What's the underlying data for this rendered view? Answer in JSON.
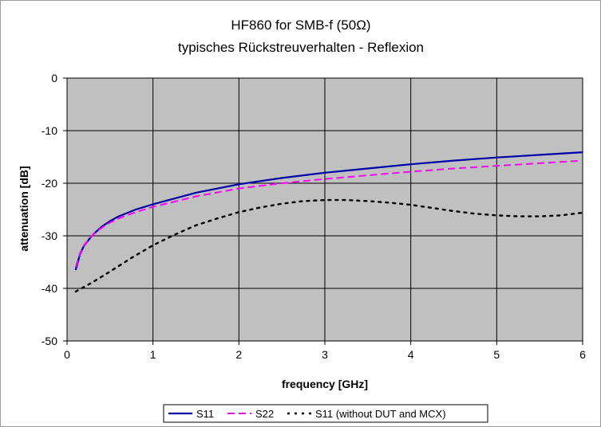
{
  "chart_data": {
    "type": "line",
    "title": "HF860 for SMB-f (50Ω)",
    "subtitle": "typisches Rückstreuverhalten - Reflexion",
    "xlabel": "frequency [GHz]",
    "ylabel": "attenuation [dB]",
    "xlim": [
      0,
      6
    ],
    "ylim": [
      -50,
      0
    ],
    "x_ticks": [
      0,
      1,
      2,
      3,
      4,
      5,
      6
    ],
    "y_ticks": [
      0,
      -10,
      -20,
      -30,
      -40,
      -50
    ],
    "grid": true,
    "legend_position": "bottom",
    "plot_background": "#c0c0c0",
    "series": [
      {
        "name": "S11",
        "color": "#0000a8",
        "style": "solid",
        "x": [
          0.1,
          0.15,
          0.2,
          0.3,
          0.4,
          0.5,
          0.6,
          0.8,
          1.0,
          1.5,
          2.0,
          2.5,
          3.0,
          3.5,
          4.0,
          4.5,
          5.0,
          5.5,
          6.0
        ],
        "y": [
          -36.5,
          -33.5,
          -31.8,
          -29.8,
          -28.3,
          -27.2,
          -26.3,
          -25.0,
          -24.0,
          -21.8,
          -20.2,
          -19.0,
          -18.0,
          -17.2,
          -16.4,
          -15.7,
          -15.1,
          -14.6,
          -14.1
        ]
      },
      {
        "name": "S22",
        "color": "#ff00ff",
        "style": "dashed",
        "x": [
          0.1,
          0.15,
          0.2,
          0.3,
          0.4,
          0.5,
          0.6,
          0.8,
          1.0,
          1.5,
          2.0,
          2.5,
          3.0,
          3.5,
          4.0,
          4.5,
          5.0,
          5.5,
          6.0
        ],
        "y": [
          -36.0,
          -33.3,
          -31.7,
          -29.8,
          -28.5,
          -27.5,
          -26.7,
          -25.5,
          -24.5,
          -22.5,
          -21.0,
          -20.0,
          -19.2,
          -18.5,
          -17.8,
          -17.2,
          -16.7,
          -16.2,
          -15.7
        ]
      },
      {
        "name": "S11 (without DUT and  MCX)",
        "color": "#000000",
        "style": "dotted",
        "x": [
          0.1,
          0.3,
          0.5,
          0.75,
          1.0,
          1.25,
          1.5,
          1.75,
          2.0,
          2.25,
          2.5,
          2.75,
          3.0,
          3.25,
          3.5,
          3.75,
          4.0,
          4.25,
          4.5,
          4.75,
          5.0,
          5.25,
          5.5,
          5.75,
          6.0
        ],
        "y": [
          -40.6,
          -38.8,
          -36.8,
          -34.2,
          -31.8,
          -29.8,
          -28.0,
          -26.7,
          -25.5,
          -24.6,
          -23.9,
          -23.4,
          -23.2,
          -23.2,
          -23.4,
          -23.7,
          -24.1,
          -24.7,
          -25.3,
          -25.8,
          -26.1,
          -26.3,
          -26.3,
          -26.1,
          -25.6
        ]
      }
    ]
  }
}
